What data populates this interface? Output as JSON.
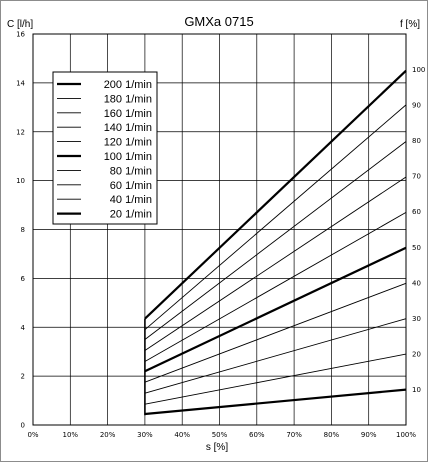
{
  "chart_data": {
    "type": "line",
    "title": "GMXa 0715",
    "left_axis_label": "C [l/h]",
    "right_axis_label": "f [%]",
    "xlabel": "s [%]",
    "x_ticks": [
      "0%",
      "10%",
      "20%",
      "30%",
      "40%",
      "50%",
      "60%",
      "70%",
      "80%",
      "90%",
      "100%"
    ],
    "y_left_ticks": [
      "0",
      "2",
      "4",
      "6",
      "8",
      "10",
      "12",
      "14",
      "16"
    ],
    "y_right_ticks": [
      "10",
      "20",
      "30",
      "40",
      "50",
      "60",
      "70",
      "80",
      "90",
      "100"
    ],
    "xlim": [
      0,
      100
    ],
    "ylim_left": [
      0,
      16
    ],
    "ylim_right": [
      0,
      110
    ],
    "grid": true,
    "legend_position": "top-left",
    "series": [
      {
        "name": "200 1/min",
        "x": [
          30,
          100
        ],
        "y": [
          4.35,
          14.5
        ],
        "bold": true
      },
      {
        "name": "180 1/min",
        "x": [
          30,
          100
        ],
        "y": [
          3.9,
          13.1
        ],
        "bold": false
      },
      {
        "name": "160 1/min",
        "x": [
          30,
          100
        ],
        "y": [
          3.5,
          11.6
        ],
        "bold": false
      },
      {
        "name": "140 1/min",
        "x": [
          30,
          100
        ],
        "y": [
          3.05,
          10.15
        ],
        "bold": false
      },
      {
        "name": "120 1/min",
        "x": [
          30,
          100
        ],
        "y": [
          2.6,
          8.7
        ],
        "bold": false
      },
      {
        "name": "100 1/min",
        "x": [
          30,
          100
        ],
        "y": [
          2.2,
          7.25
        ],
        "bold": true
      },
      {
        "name": "80 1/min",
        "x": [
          30,
          100
        ],
        "y": [
          1.75,
          5.8
        ],
        "bold": false
      },
      {
        "name": "60 1/min",
        "x": [
          30,
          100
        ],
        "y": [
          1.3,
          4.35
        ],
        "bold": false
      },
      {
        "name": "40 1/min",
        "x": [
          30,
          100
        ],
        "y": [
          0.85,
          2.9
        ],
        "bold": false
      },
      {
        "name": "20 1/min",
        "x": [
          30,
          100
        ],
        "y": [
          0.45,
          1.45
        ],
        "bold": true
      }
    ]
  }
}
